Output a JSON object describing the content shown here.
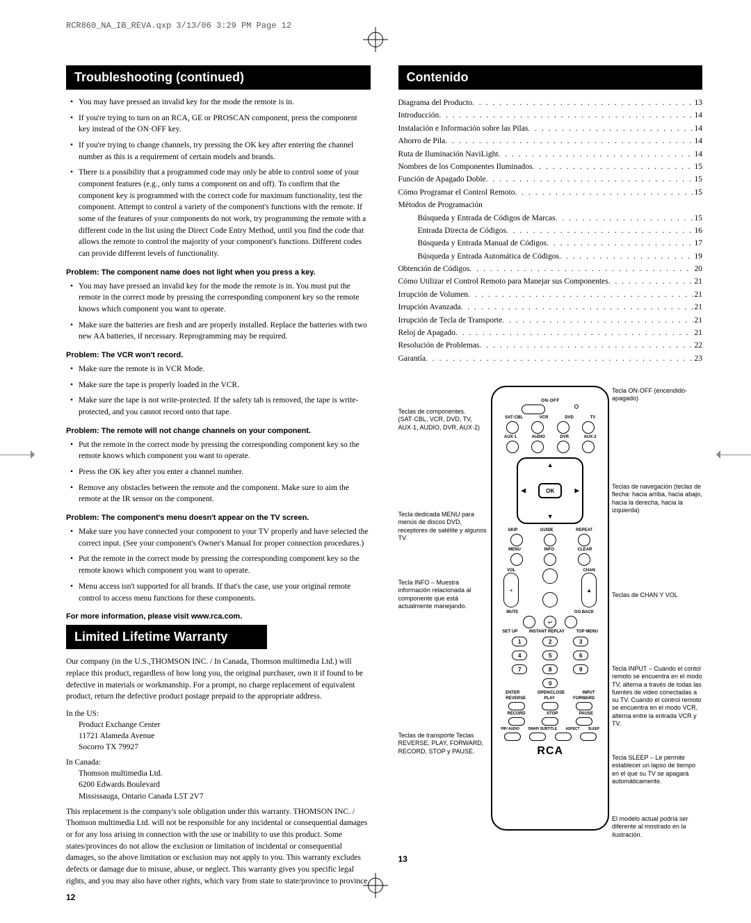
{
  "header_line": "RCR860_NA_IB_REVA.qxp  3/13/06  3:29 PM  Page 12",
  "left": {
    "section1_title": "Troubleshooting (continued)",
    "bullets1": [
      "You may have pressed an invalid key for the mode the remote is in.",
      "If you're trying to turn on an RCA, GE or PROSCAN component, press the component key instead of the ON·OFF key.",
      "If you're trying to change channels, try pressing the OK key after entering the channel number as this is a requirement of certain models and brands.",
      "There is a possibility that a programmed code may only be able to control some of your component features (e.g., only turns a component on and off). To confirm that the component key is programmed with the correct code for maximum functionality, test the component. Attempt to control a variety of the component's functions with the remote. If some of the features of your components do not work, try programming the remote with a different code in the list using the Direct Code Entry Method, until you find the code that allows the remote to control the majority of your component's functions. Different codes can provide different levels of functionality."
    ],
    "p2_heading": "Problem: The component name does not light when you press a key.",
    "bullets2": [
      "You may have pressed an invalid key for the mode the remote is in. You must put the remote in the correct mode by pressing the corresponding component key so the remote knows which component you want to operate.",
      "Make sure the batteries are fresh and are properly installed. Replace the batteries with two new AA batteries, if necessary. Reprogramming may be required."
    ],
    "p3_heading": "Problem: The VCR won't record.",
    "bullets3": [
      "Make sure the remote is in VCR Mode.",
      "Make sure the tape is properly loaded in the VCR.",
      "Make sure the tape is not write-protected. If the safety tab is removed, the tape is write-protected, and you cannot record onto that tape."
    ],
    "p4_heading": "Problem: The remote will not change channels on your component.",
    "bullets4": [
      "Put the remote in the correct mode by pressing the corresponding component key so the remote knows which component you want to operate.",
      "Press the OK key after you enter a channel number.",
      "Remove any obstacles between the remote and the component. Make sure to aim the remote at the IR sensor on the component."
    ],
    "p5_heading": "Problem: The component's menu doesn't appear on the TV screen.",
    "bullets5": [
      "Make sure you have connected your component to your TV properly and have selected the correct input. (See your component's Owner's Manual for proper connection procedures.)",
      "Put the remote in the correct mode by pressing the corresponding component key so the remote knows which component you want to operate.",
      "Menu access isn't supported for all brands. If that's the case, use your original remote control to access menu functions for these components."
    ],
    "more_info": "For more information, please visit www.rca.com.",
    "section2_title": "Limited Lifetime Warranty",
    "warranty_p1": "Our company (in the U.S.,THOMSON INC. / In Canada, Thomson multimedia Ltd.) will replace this product, regardless of how long you, the original purchaser, own it if found to be defective in materials or workmanship. For a prompt, no charge replacement of equivalent product, return the defective product postage prepaid to the appropriate address.",
    "us_label": "In the US:",
    "us_addr": [
      "Product Exchange Center",
      "11721 Alameda Avenue",
      "Socorro TX 79927"
    ],
    "ca_label": "In Canada:",
    "ca_addr": [
      "Thomson multimedia Ltd.",
      "6200 Edwards Boulevard",
      "Mississauga, Ontario Canada L5T 2V7"
    ],
    "warranty_p2": "This replacement is the company's sole obligation under this warranty. THOMSON INC. / Thomson multimedia Ltd. will not be responsible for any incidental or consequential damages or for any loss arising in connection with the use or inability to use this product. Some states/provinces do not allow the exclusion or limitation of incidental or consequential damages, so the above limitation or exclusion may not apply to you. This warranty excludes defects or damage due to misuse, abuse, or neglect. This warranty gives you specific legal rights, and you may also have other rights, which vary from state to state/province to province.",
    "page_num": "12"
  },
  "right": {
    "section_title": "Contenido",
    "toc": [
      {
        "label": "Diagrama del Producto",
        "page": "13",
        "indent": false
      },
      {
        "label": "Introducción",
        "page": "14",
        "indent": false
      },
      {
        "label": "Instalación e Información sobre las Pilas",
        "page": "14",
        "indent": false
      },
      {
        "label": "Ahorro de Pila",
        "page": "14",
        "indent": false
      },
      {
        "label": "Ruta de Iluminación NaviLight",
        "page": "14",
        "indent": false
      },
      {
        "label": "Nombres de los Componentes Iluminados",
        "page": "15",
        "indent": false
      },
      {
        "label": "Función de Apagado Doble",
        "page": "15",
        "indent": false
      },
      {
        "label": "Cómo Programar el Control Remoto",
        "page": "15",
        "indent": false
      },
      {
        "label": "Métodos de Programación",
        "page": "",
        "indent": false,
        "nodots": true
      },
      {
        "label": "Búsqueda y Entrada de Códigos de Marcas",
        "page": "15",
        "indent": true
      },
      {
        "label": "Entrada Directa de Códigos",
        "page": "16",
        "indent": true
      },
      {
        "label": "Búsqueda y Entrada Manual de Códigos",
        "page": "17",
        "indent": true
      },
      {
        "label": "Búsqueda y Entrada Automática de Códigos",
        "page": "19",
        "indent": true
      },
      {
        "label": "Obtención de Códigos",
        "page": "20",
        "indent": false
      },
      {
        "label": "Cómo Utilizar el Control Remoto para Manejar sus Componentes",
        "page": "21",
        "indent": false
      },
      {
        "label": "Irrupción de Volumen",
        "page": "21",
        "indent": false
      },
      {
        "label": "Irrupción Avanzada",
        "page": "21",
        "indent": false
      },
      {
        "label": "Irrupción de Tecla de Transporte",
        "page": "21",
        "indent": false
      },
      {
        "label": "Reloj de Apagado",
        "page": "21",
        "indent": false
      },
      {
        "label": "Resolución de Problemas",
        "page": "22",
        "indent": false
      },
      {
        "label": "Garantía",
        "page": "23",
        "indent": false
      }
    ],
    "page_num": "13",
    "remote": {
      "onoff_label": "ON·OFF",
      "row1_labels": [
        "SAT·CBL",
        "VCR",
        "DVD",
        "TV"
      ],
      "row2_labels": [
        "AUX·1",
        "AUDIO",
        "DVR",
        "AUX·2"
      ],
      "ok_label": "OK",
      "row3_labels": [
        "SKIP",
        "GUIDE",
        "REPEAT"
      ],
      "row4_labels": [
        "MENU",
        "INFO",
        "CLEAR"
      ],
      "vol_label": "VOL",
      "chan_label": "CHAN",
      "mute_label": "MUTE",
      "goback_label": "GO BACK",
      "row5_labels": [
        "SET UP",
        "INSTANT REPLAY",
        "TOP MENU"
      ],
      "row6_labels": [
        "ANGLE",
        "TITLE",
        "ZOOM"
      ],
      "row7_labels": [
        "ENTER",
        "OPEN/CLOSE",
        "INPUT"
      ],
      "transport_labels": [
        "REVERSE",
        "PLAY",
        "FORWARD"
      ],
      "transport2_labels": [
        "RECORD",
        "STOP",
        "PAUSE"
      ],
      "bottom_labels": [
        "PIP/ AUDIO",
        "SWAP/ SUBTITLE",
        "ASPECT",
        "SLEEP"
      ],
      "brand": "RCA",
      "callout_onoff": "Tecla ON·OFF (encendido-apagado)",
      "callout_components": "Teclas de componentes. (SAT·CBL, VCR, DVD, TV, AUX·1, AUDIO, DVR, AUX·2)",
      "callout_nav": "Teclas de navegación (teclas de flecha: hacia arriba, hacia abajo, hacia la derecha, hacia la izquierda)",
      "callout_menu": "Tecla dedicada MENU para menús de discos DVD, receptores de satélite y algunos TV.",
      "callout_info": "Tecla INFO – Muestra información relacionada al componente que está actualmente manejando.",
      "callout_chanvol": "Teclas de CHAN Y VOL",
      "callout_input": "Tecla INPUT – Cuando el contol remoto se encuentra en el modo TV, alterna a través de todas las fuentes de video conectadas a su TV. Cuando el control remoto se encuentra en el modo VCR, alterna entre la entrada VCR y TV.",
      "callout_transport": "Teclas de transporte Teclas REVERSE, PLAY, FORWARD, RECORD, STOP y PAUSE.",
      "callout_sleep": "Tecla SLEEP – Le permite establecer un lapso de tiempo en el que su TV se apagará automáticamente.",
      "callout_footnote": "El modelo actual podría ser diferente al mostrado en la ilustración."
    }
  }
}
